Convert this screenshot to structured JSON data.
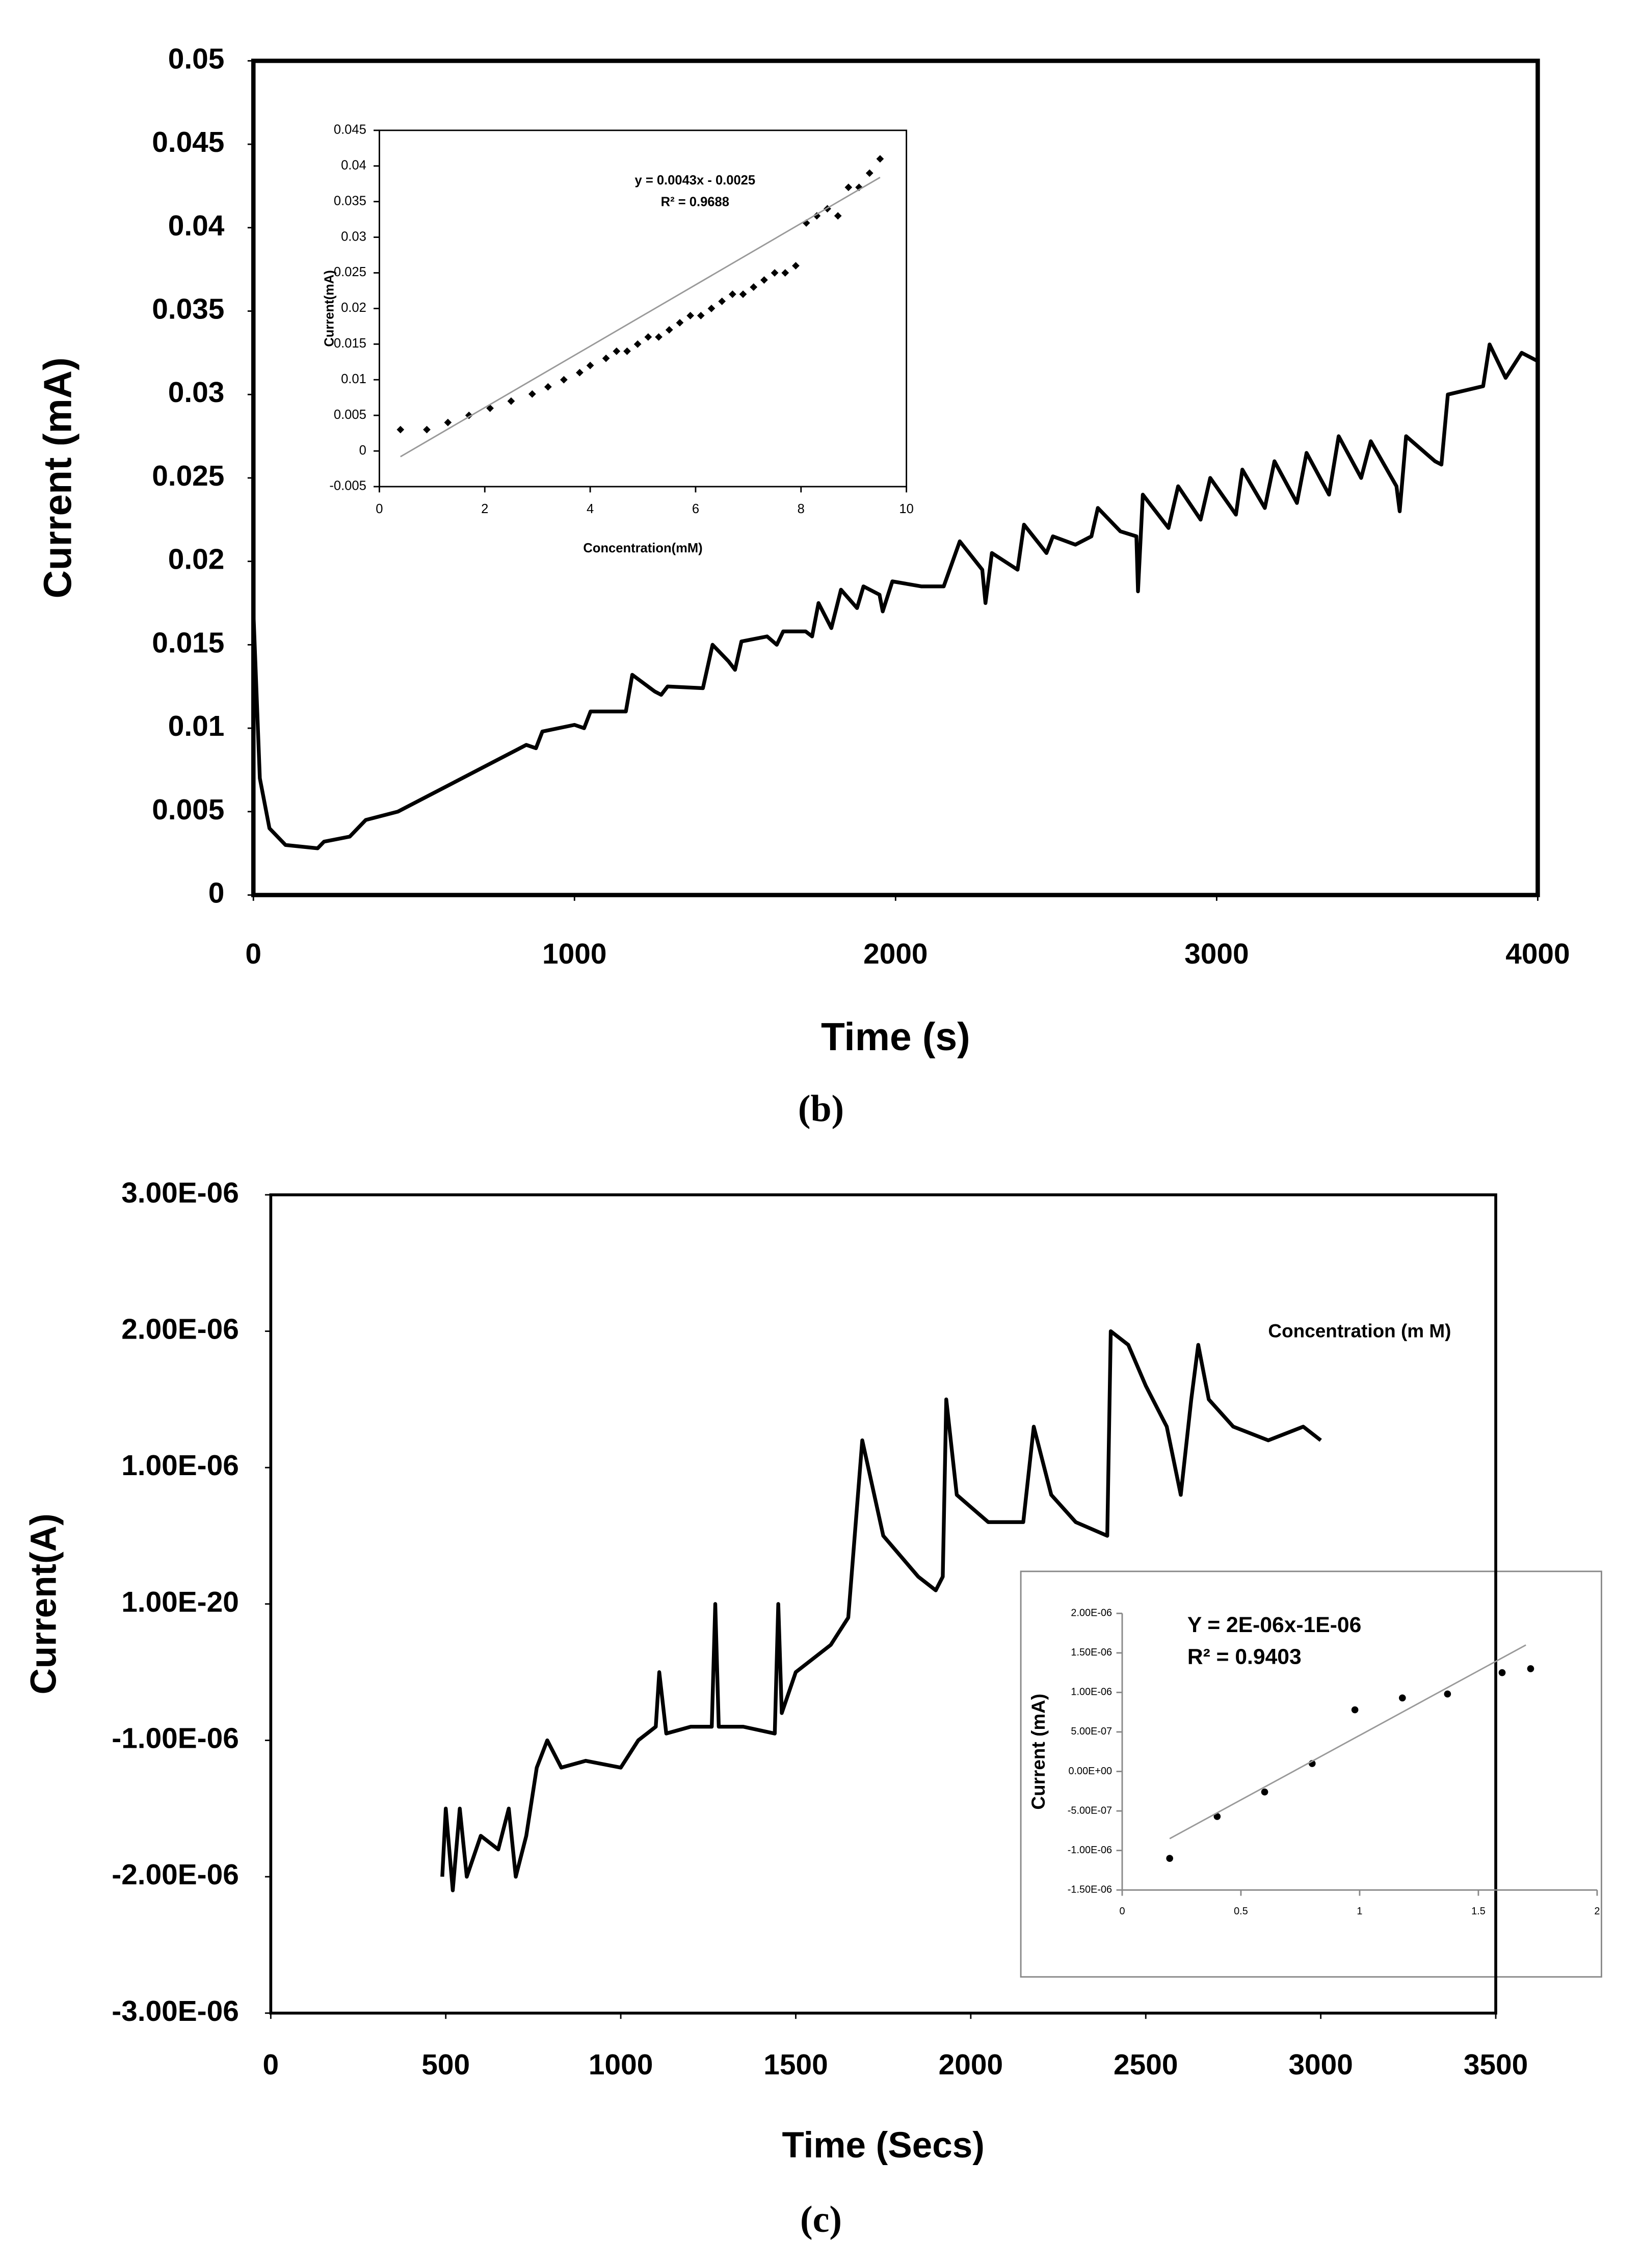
{
  "chart_data": [
    {
      "type": "line",
      "caption": "(b)",
      "x_label": "Time (s)",
      "y_label": "Current (mA)",
      "xlim": [
        0,
        4000
      ],
      "xticks": [
        0,
        1000,
        2000,
        3000,
        4000
      ],
      "ylim": [
        0,
        0.05
      ],
      "yticks": [
        0,
        0.005,
        0.01,
        0.015,
        0.02,
        0.025,
        0.03,
        0.035,
        0.04,
        0.045,
        0.05
      ],
      "series": [
        {
          "color": "#000000",
          "x": [
            0,
            20,
            50,
            100,
            200,
            220,
            300,
            350,
            450,
            550,
            650,
            750,
            850,
            880,
            900,
            1000,
            1030,
            1050,
            1150,
            1160,
            1180,
            1250,
            1270,
            1290,
            1400,
            1430,
            1480,
            1500,
            1520,
            1600,
            1630,
            1650,
            1720,
            1740,
            1760,
            1800,
            1830,
            1880,
            1900,
            1950,
            1960,
            1990,
            2080,
            2150,
            2200,
            2270,
            2280,
            2300,
            2380,
            2400,
            2470,
            2490,
            2560,
            2610,
            2630,
            2700,
            2750,
            2755,
            2770,
            2850,
            2880,
            2950,
            2980,
            3060,
            3080,
            3150,
            3180,
            3250,
            3280,
            3350,
            3380,
            3450,
            3480,
            3560,
            3570,
            3590,
            3680,
            3700,
            3720,
            3830,
            3850,
            3900,
            3950,
            4000
          ],
          "values": [
            0.017,
            0.007,
            0.004,
            0.003,
            0.0028,
            0.0032,
            0.0035,
            0.0045,
            0.005,
            0.006,
            0.007,
            0.008,
            0.009,
            0.0088,
            0.0098,
            0.0102,
            0.01,
            0.011,
            0.011,
            0.011,
            0.0132,
            0.0122,
            0.012,
            0.0125,
            0.0124,
            0.015,
            0.014,
            0.0135,
            0.0152,
            0.0155,
            0.015,
            0.0158,
            0.0158,
            0.0155,
            0.0175,
            0.016,
            0.0183,
            0.0172,
            0.0185,
            0.018,
            0.017,
            0.0188,
            0.0185,
            0.0185,
            0.0212,
            0.0195,
            0.0175,
            0.0205,
            0.0195,
            0.0222,
            0.0205,
            0.0215,
            0.021,
            0.0215,
            0.0232,
            0.0218,
            0.0215,
            0.0182,
            0.024,
            0.022,
            0.0245,
            0.0225,
            0.025,
            0.0228,
            0.0255,
            0.0232,
            0.026,
            0.0235,
            0.0265,
            0.024,
            0.0275,
            0.025,
            0.0272,
            0.0245,
            0.023,
            0.0275,
            0.026,
            0.0258,
            0.03,
            0.0305,
            0.033,
            0.031,
            0.0325,
            0.032
          ]
        }
      ]
    },
    {
      "type": "scatter",
      "x_label": "Concentration(mM)",
      "y_label": "Current(mA)",
      "annotations": [
        "y = 0.0043x - 0.0025",
        "R² = 0.9688"
      ],
      "xlim": [
        0,
        10
      ],
      "xticks": [
        0,
        2,
        4,
        6,
        8,
        10
      ],
      "ylim": [
        -0.005,
        0.045
      ],
      "yticks": [
        -0.005,
        0,
        0.005,
        0.01,
        0.015,
        0.02,
        0.025,
        0.03,
        0.035,
        0.04,
        0.045
      ],
      "series": [
        {
          "color": "#000000",
          "x": [
            0.4,
            0.9,
            1.3,
            1.7,
            2.1,
            2.5,
            2.9,
            3.2,
            3.5,
            3.8,
            4.0,
            4.3,
            4.5,
            4.7,
            4.9,
            5.1,
            5.3,
            5.5,
            5.7,
            5.9,
            6.1,
            6.3,
            6.5,
            6.7,
            6.9,
            7.1,
            7.3,
            7.5,
            7.7,
            7.9,
            8.1,
            8.3,
            8.5,
            8.7,
            8.9,
            9.1,
            9.3,
            9.5
          ],
          "values": [
            0.003,
            0.003,
            0.004,
            0.005,
            0.006,
            0.007,
            0.008,
            0.009,
            0.01,
            0.011,
            0.012,
            0.013,
            0.014,
            0.014,
            0.015,
            0.016,
            0.016,
            0.017,
            0.018,
            0.019,
            0.019,
            0.02,
            0.021,
            0.022,
            0.022,
            0.023,
            0.024,
            0.025,
            0.025,
            0.026,
            0.032,
            0.033,
            0.034,
            0.033,
            0.037,
            0.037,
            0.039,
            0.041
          ]
        },
        {
          "type": "line",
          "color": "#999999",
          "x": [
            0.4,
            9.5
          ],
          "values": [
            -0.0008,
            0.0384
          ]
        }
      ]
    },
    {
      "type": "line",
      "caption": "(c)",
      "x_label": "Time (Secs)",
      "y_label": "Current(A)",
      "xlim": [
        0,
        3500
      ],
      "xticks": [
        0,
        500,
        1000,
        1500,
        2000,
        2500,
        3000,
        3500
      ],
      "ylim": [
        -3e-06,
        3e-06
      ],
      "yticks": [
        {
          "value": -3e-06,
          "label": "-3.00E-06"
        },
        {
          "value": -2e-06,
          "label": "-2.00E-06"
        },
        {
          "value": -1e-06,
          "label": "-1.00E-06"
        },
        {
          "value": 1e-20,
          "label": "1.00E-20"
        },
        {
          "value": 1e-06,
          "label": "1.00E-06"
        },
        {
          "value": 2e-06,
          "label": "2.00E-06"
        },
        {
          "value": 3e-06,
          "label": "3.00E-06"
        }
      ],
      "series": [
        {
          "color": "#000000",
          "x": [
            490,
            500,
            520,
            540,
            560,
            600,
            650,
            680,
            700,
            730,
            760,
            790,
            830,
            900,
            1000,
            1050,
            1100,
            1110,
            1130,
            1200,
            1260,
            1270,
            1280,
            1350,
            1440,
            1450,
            1460,
            1500,
            1550,
            1600,
            1650,
            1690,
            1750,
            1850,
            1900,
            1920,
            1930,
            1960,
            2050,
            2150,
            2180,
            2230,
            2300,
            2390,
            2400,
            2450,
            2500,
            2560,
            2600,
            2630,
            2650,
            2680,
            2750,
            2850,
            2950,
            3000
          ],
          "values": [
            -2e-06,
            -1.5e-06,
            -2.1e-06,
            -1.5e-06,
            -2e-06,
            -1.7e-06,
            -1.8e-06,
            -1.5e-06,
            -2e-06,
            -1.7e-06,
            -1.2e-06,
            -1e-06,
            -1.2e-06,
            -1.15e-06,
            -1.2e-06,
            -1e-06,
            -9e-07,
            -5e-07,
            -9.5e-07,
            -9e-07,
            -9e-07,
            0,
            -9e-07,
            -9e-07,
            -9.5e-07,
            0,
            -8e-07,
            -5e-07,
            -4e-07,
            -3e-07,
            -1e-07,
            1.2e-06,
            5e-07,
            2e-07,
            1e-07,
            2e-07,
            1.5e-06,
            8e-07,
            6e-07,
            6e-07,
            1.3e-06,
            8e-07,
            6e-07,
            5e-07,
            2e-06,
            1.9e-06,
            1.6e-06,
            1.3e-06,
            8e-07,
            1.5e-06,
            1.9e-06,
            1.5e-06,
            1.3e-06,
            1.2e-06,
            1.3e-06,
            1.2e-06
          ]
        }
      ]
    },
    {
      "type": "scatter",
      "x_label": "Concentration (m M)",
      "y_label": "Current (mA)",
      "annotations": [
        "Y = 2E-06x-1E-06",
        "R² = 0.9403"
      ],
      "xlim": [
        0,
        2
      ],
      "xticks": [
        0,
        0.5,
        1,
        1.5,
        2
      ],
      "ylim": [
        -1.5e-06,
        2e-06
      ],
      "yticks": [
        {
          "value": -1.5e-06,
          "label": "-1.50E-06"
        },
        {
          "value": -1e-06,
          "label": "-1.00E-06"
        },
        {
          "value": -5e-07,
          "label": "-5.00E-07"
        },
        {
          "value": 0,
          "label": "0.00E+00"
        },
        {
          "value": 5e-07,
          "label": "5.00E-07"
        },
        {
          "value": 1e-06,
          "label": "1.00E-06"
        },
        {
          "value": 1.5e-06,
          "label": "1.50E-06"
        },
        {
          "value": 2e-06,
          "label": "2.00E-06"
        }
      ],
      "series": [
        {
          "color": "#000000",
          "x": [
            0.2,
            0.4,
            0.6,
            0.8,
            0.98,
            1.18,
            1.37,
            1.6,
            1.72
          ],
          "values": [
            -1.1e-06,
            -5.7e-07,
            -2.6e-07,
            1e-07,
            7.8e-07,
            9.3e-07,
            9.8e-07,
            1.25e-06,
            1.3e-06
          ]
        },
        {
          "type": "line",
          "color": "#999999",
          "x": [
            0.2,
            1.7
          ],
          "values": [
            -8.5e-07,
            1.6e-06
          ]
        }
      ]
    }
  ]
}
